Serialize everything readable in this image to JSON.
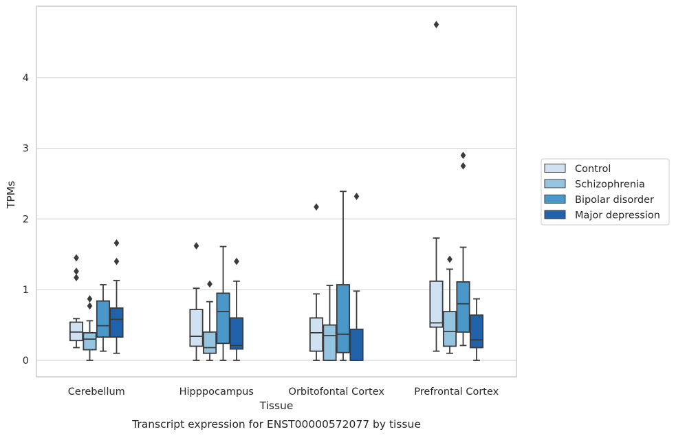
{
  "chart_data": {
    "type": "boxplot",
    "caption": "Transcript expression for ENST00000572077 by tissue",
    "xlabel": "Tissue",
    "ylabel": "TPMs",
    "ylim": [
      -0.23,
      5.0
    ],
    "yticks": [
      0,
      1,
      2,
      3,
      4
    ],
    "grid": "horizontal",
    "legend_position": "right",
    "categories": [
      "Cerebellum",
      "Hipppocampus",
      "Orbitofontal Cortex",
      "Prefrontal Cortex"
    ],
    "series": [
      {
        "name": "Control",
        "color": "#d0e1f2",
        "boxes": [
          {
            "whislo": 0.18,
            "q1": 0.28,
            "med": 0.4,
            "q3": 0.54,
            "whishi": 0.59,
            "fliers": [
              1.45,
              1.26,
              1.17
            ]
          },
          {
            "whislo": 0.0,
            "q1": 0.2,
            "med": 0.34,
            "q3": 0.72,
            "whishi": 1.02,
            "fliers": [
              1.62
            ]
          },
          {
            "whislo": 0.0,
            "q1": 0.13,
            "med": 0.39,
            "q3": 0.6,
            "whishi": 0.94,
            "fliers": [
              2.17
            ]
          },
          {
            "whislo": 0.13,
            "q1": 0.47,
            "med": 0.53,
            "q3": 1.12,
            "whishi": 1.73,
            "fliers": [
              4.75
            ]
          }
        ]
      },
      {
        "name": "Schizophrenia",
        "color": "#94c4df",
        "boxes": [
          {
            "whislo": 0.0,
            "q1": 0.15,
            "med": 0.3,
            "q3": 0.39,
            "whishi": 0.56,
            "fliers": [
              0.87,
              0.77
            ]
          },
          {
            "whislo": 0.0,
            "q1": 0.1,
            "med": 0.18,
            "q3": 0.4,
            "whishi": 0.83,
            "fliers": [
              1.08
            ]
          },
          {
            "whislo": 0.0,
            "q1": 0.0,
            "med": 0.35,
            "q3": 0.5,
            "whishi": 1.06,
            "fliers": []
          },
          {
            "whislo": 0.1,
            "q1": 0.2,
            "med": 0.41,
            "q3": 0.69,
            "whishi": 1.29,
            "fliers": [
              1.43
            ]
          }
        ]
      },
      {
        "name": "Bipolar disorder",
        "color": "#4a98c9",
        "boxes": [
          {
            "whislo": 0.13,
            "q1": 0.33,
            "med": 0.49,
            "q3": 0.84,
            "whishi": 1.07,
            "fliers": []
          },
          {
            "whislo": 0.0,
            "q1": 0.24,
            "med": 0.69,
            "q3": 0.95,
            "whishi": 1.61,
            "fliers": []
          },
          {
            "whislo": 0.0,
            "q1": 0.11,
            "med": 0.37,
            "q3": 1.07,
            "whishi": 2.39,
            "fliers": []
          },
          {
            "whislo": 0.21,
            "q1": 0.4,
            "med": 0.8,
            "q3": 1.11,
            "whishi": 1.6,
            "fliers": [
              2.9,
              2.75
            ]
          }
        ]
      },
      {
        "name": "Major depression",
        "color": "#2163aa",
        "boxes": [
          {
            "whislo": 0.1,
            "q1": 0.33,
            "med": 0.58,
            "q3": 0.74,
            "whishi": 1.13,
            "fliers": [
              1.66,
              1.4
            ]
          },
          {
            "whislo": 0.0,
            "q1": 0.16,
            "med": 0.21,
            "q3": 0.6,
            "whishi": 1.12,
            "fliers": [
              1.4
            ]
          },
          {
            "whislo": 0.0,
            "q1": 0.0,
            "med": 0.0,
            "q3": 0.44,
            "whishi": 0.98,
            "fliers": [
              2.32
            ]
          },
          {
            "whislo": 0.0,
            "q1": 0.18,
            "med": 0.29,
            "q3": 0.64,
            "whishi": 0.87,
            "fliers": []
          }
        ]
      }
    ]
  }
}
